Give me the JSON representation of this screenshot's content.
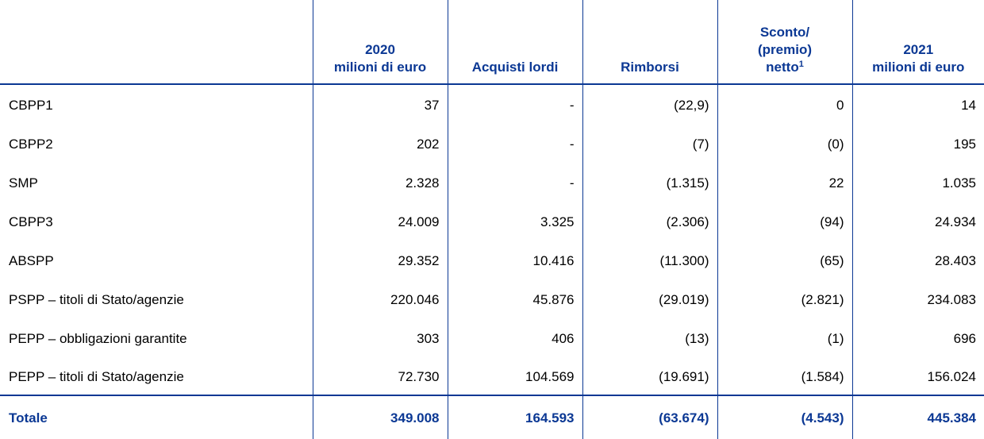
{
  "header": {
    "col1": [
      "2020",
      "milioni di euro"
    ],
    "col2": [
      "Acquisti lordi"
    ],
    "col3": [
      "Rimborsi"
    ],
    "col4": [
      "Sconto/",
      "(premio)",
      "netto"
    ],
    "col4_sup": "1",
    "col5": [
      "2021",
      "milioni di euro"
    ]
  },
  "rows": [
    {
      "label": "CBPP1",
      "v2020": "37",
      "acquisti": "-",
      "rimborsi": "(22,9)",
      "sconto": "0",
      "v2021": "14"
    },
    {
      "label": "CBPP2",
      "v2020": "202",
      "acquisti": "-",
      "rimborsi": "(7)",
      "sconto": "(0)",
      "v2021": "195"
    },
    {
      "label": "SMP",
      "v2020": "2.328",
      "acquisti": "-",
      "rimborsi": "(1.315)",
      "sconto": "22",
      "v2021": "1.035"
    },
    {
      "label": "CBPP3",
      "v2020": "24.009",
      "acquisti": "3.325",
      "rimborsi": "(2.306)",
      "sconto": "(94)",
      "v2021": "24.934"
    },
    {
      "label": "ABSPP",
      "v2020": "29.352",
      "acquisti": "10.416",
      "rimborsi": "(11.300)",
      "sconto": "(65)",
      "v2021": "28.403"
    },
    {
      "label": "PSPP – titoli di Stato/agenzie",
      "v2020": "220.046",
      "acquisti": "45.876",
      "rimborsi": "(29.019)",
      "sconto": "(2.821)",
      "v2021": "234.083"
    },
    {
      "label": "PEPP – obbligazioni garantite",
      "v2020": "303",
      "acquisti": "406",
      "rimborsi": "(13)",
      "sconto": "(1)",
      "v2021": "696"
    },
    {
      "label": "PEPP – titoli di Stato/agenzie",
      "v2020": "72.730",
      "acquisti": "104.569",
      "rimborsi": "(19.691)",
      "sconto": "(1.584)",
      "v2021": "156.024"
    }
  ],
  "total": {
    "label": "Totale",
    "v2020": "349.008",
    "acquisti": "164.593",
    "rimborsi": "(63.674)",
    "sconto": "(4.543)",
    "v2021": "445.384"
  },
  "colors": {
    "accent": "#0b3894"
  }
}
